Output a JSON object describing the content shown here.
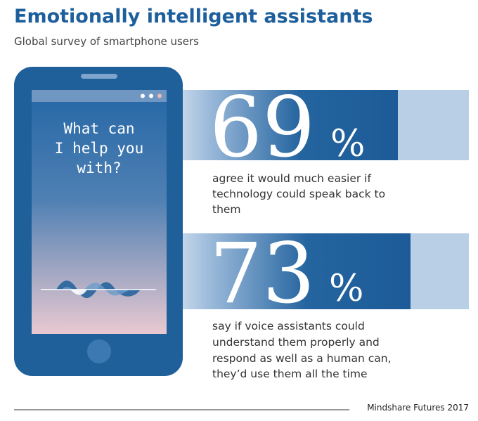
{
  "header": {
    "title": "Emotionally intelligent assistants",
    "subtitle": "Global survey of smartphone users"
  },
  "phone": {
    "prompt_lines": [
      "What can",
      "I help you",
      "with?"
    ]
  },
  "stats": [
    {
      "value": 69,
      "unit": "%",
      "description_lines": [
        "agree it would much easier if",
        "technology could speak back to",
        "them"
      ]
    },
    {
      "value": 73,
      "unit": "%",
      "description_lines": [
        "say if voice assistants could",
        "understand them properly and",
        "respond as well as a human can,",
        "they’d use them all the time"
      ]
    }
  ],
  "footer": {
    "source": "Mindshare Futures 2017"
  }
}
